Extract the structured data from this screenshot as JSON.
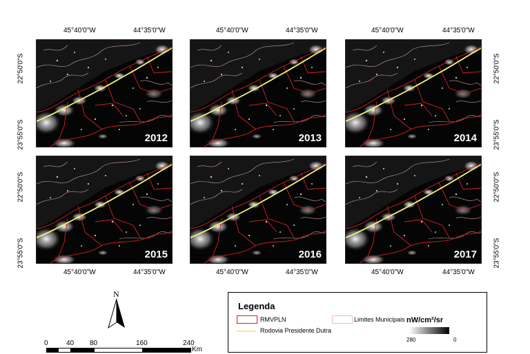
{
  "coords": {
    "lon_left": "45°40'0\"W",
    "lon_right": "44°35'0\"W",
    "lat_top": "22°50'0\"S",
    "lat_bottom": "23°55'0\"S"
  },
  "panels": [
    {
      "year": "2012"
    },
    {
      "year": "2013"
    },
    {
      "year": "2014"
    },
    {
      "year": "2015"
    },
    {
      "year": "2016"
    },
    {
      "year": "2017"
    }
  ],
  "north_arrow": {
    "label": "N"
  },
  "scale_bar": {
    "ticks": [
      "0",
      "40",
      "80",
      "160",
      "240"
    ],
    "unit": "Km"
  },
  "legend": {
    "title": "Legenda",
    "items": {
      "rmvpln": {
        "label": "RMVPLN",
        "color": "#d62020"
      },
      "dutra": {
        "label": "Rodovia Presidente Dutra",
        "color": "#f2f27a"
      },
      "limites": {
        "label": "Limites Municipais",
        "color": "#f2b8c0"
      }
    },
    "ramp": {
      "title": "nW/cm²/sr",
      "max_label": "280",
      "min_label": "0"
    }
  }
}
